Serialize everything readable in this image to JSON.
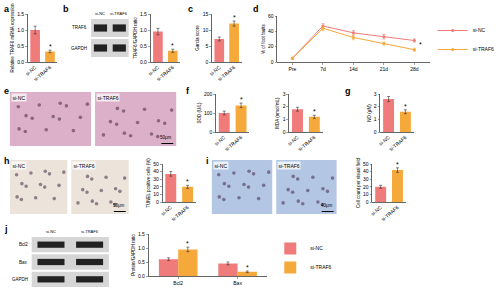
{
  "chart_data": [
    {
      "label": "a",
      "type": "bar",
      "categories": [
        "si-NC",
        "si-TRAF6"
      ],
      "values": [
        1.0,
        0.33
      ],
      "errors": [
        0.12,
        0.04
      ],
      "colors": [
        "#f07b7b",
        "#f5a93b"
      ],
      "ylabel": "Relative TRAF6 mRNA expression",
      "ylim": [
        0,
        1.5
      ],
      "yticks": [
        {
          "value": 0,
          "label": "0.0"
        },
        {
          "value": 0.5,
          "label": "0.5"
        },
        {
          "value": 1,
          "label": "1.0"
        },
        {
          "value": 1.5,
          "label": "1.5"
        }
      ],
      "annotations": [
        {
          "category": "si-TRAF6",
          "text": "*"
        }
      ]
    },
    {
      "type": "bar",
      "categories": [
        "si-NC",
        "si-TRAF6"
      ],
      "values": [
        0.95,
        0.35
      ],
      "errors": [
        0.1,
        0.05
      ],
      "colors": [
        "#f07b7b",
        "#f5a93b"
      ],
      "ylabel": "TRAF6/GAPDH ratio",
      "ylim": [
        0,
        1.5
      ],
      "yticks": [
        {
          "value": 0,
          "label": "0.0"
        },
        {
          "value": 0.5,
          "label": "0.5"
        },
        {
          "value": 1,
          "label": "1.0"
        },
        {
          "value": 1.5,
          "label": "1.5"
        }
      ],
      "annotations": [
        {
          "category": "si-TRAF6",
          "text": "*"
        }
      ]
    },
    {
      "label": "c",
      "type": "bar",
      "categories": [
        "si-NC",
        "si-TRAF6"
      ],
      "values": [
        7.2,
        12.0
      ],
      "errors": [
        0.6,
        0.8
      ],
      "colors": [
        "#f07b7b",
        "#f5a93b"
      ],
      "ylabel": "Garcia score",
      "ylim": [
        0,
        15
      ],
      "yticks": [
        0,
        5,
        10,
        15
      ],
      "annotations": [
        {
          "category": "si-TRAF6",
          "text": "*"
        }
      ]
    },
    {
      "label": "d",
      "type": "line",
      "categories": [
        "Pre",
        "7d",
        "14d",
        "21d",
        "28d"
      ],
      "series": [
        {
          "name": "si-NC",
          "color": "#f07b7b",
          "values": [
            5,
            47,
            38,
            33,
            28
          ],
          "errors": [
            1,
            3,
            3,
            3,
            2
          ]
        },
        {
          "name": "si-TRAF6",
          "color": "#f5a93b",
          "values": [
            5,
            44,
            32,
            24,
            16
          ],
          "errors": [
            1,
            3,
            3,
            2,
            2
          ]
        }
      ],
      "marker": "circle",
      "ylabel": "% of foot faults",
      "ylim": [
        0,
        60
      ],
      "yticks": [
        0,
        20,
        40,
        60
      ],
      "legend": "right",
      "annotations": [
        {
          "category": "28d",
          "series": "si-TRAF6",
          "text": "*"
        }
      ]
    },
    {
      "label": "f",
      "type": "bar",
      "categories": [
        "si-NC",
        "si-TRAF6"
      ],
      "values": [
        100,
        140
      ],
      "errors": [
        10,
        12
      ],
      "colors": [
        "#f07b7b",
        "#f5a93b"
      ],
      "ylabel": "SOD (U/L)",
      "ylim": [
        0,
        200
      ],
      "yticks": [
        0,
        100,
        200
      ],
      "annotations": [
        {
          "category": "si-TRAF6",
          "text": "*"
        }
      ]
    },
    {
      "type": "bar",
      "categories": [
        "si-NC",
        "si-TRAF6"
      ],
      "values": [
        1.8,
        1.2
      ],
      "errors": [
        0.15,
        0.12
      ],
      "colors": [
        "#f07b7b",
        "#f5a93b"
      ],
      "ylabel": "MDA (nmol/mL)",
      "ylim": [
        0,
        3
      ],
      "yticks": [
        0,
        1,
        2,
        3
      ],
      "annotations": [
        {
          "category": "si-TRAF6",
          "text": "*"
        }
      ]
    },
    {
      "label": "g",
      "type": "bar",
      "categories": [
        "si-NC",
        "si-TRAF6"
      ],
      "values": [
        2.6,
        1.6
      ],
      "errors": [
        0.2,
        0.15
      ],
      "colors": [
        "#f07b7b",
        "#f5a93b"
      ],
      "ylabel": "NO (μM)",
      "ylim": [
        0,
        3
      ],
      "yticks": [
        0,
        1,
        2,
        3
      ],
      "annotations": [
        {
          "category": "si-TRAF6",
          "text": "*"
        }
      ]
    },
    {
      "type": "bar",
      "categories": [
        "si-NC",
        "si-TRAF6"
      ],
      "values": [
        37,
        20
      ],
      "errors": [
        3,
        2
      ],
      "colors": [
        "#f07b7b",
        "#f5a93b"
      ],
      "ylabel": "TUNEL positive cells (%)",
      "ylim": [
        0,
        50
      ],
      "yticks": [
        0,
        10,
        20,
        30,
        40,
        50
      ],
      "annotations": [
        {
          "category": "si-TRAF6",
          "text": "*"
        }
      ]
    },
    {
      "type": "bar",
      "categories": [
        "si-NC",
        "si-TRAF6"
      ],
      "values": [
        20,
        42
      ],
      "errors": [
        2,
        3
      ],
      "colors": [
        "#f07b7b",
        "#f5a93b"
      ],
      "ylabel": "Cell count per visual field",
      "ylim": [
        0,
        50
      ],
      "yticks": [
        0,
        10,
        20,
        30,
        40,
        50
      ],
      "annotations": [
        {
          "category": "si-TRAF6",
          "text": "*"
        }
      ]
    },
    {
      "type": "bar",
      "categories": [
        "Bcl2",
        "Bax"
      ],
      "series": [
        {
          "name": "si-NC",
          "color": "#f07b7b",
          "values": [
            0.6,
            0.45
          ],
          "errors": [
            0.05,
            0.05
          ]
        },
        {
          "name": "si-TRAF6",
          "color": "#f5a93b",
          "values": [
            0.95,
            0.15
          ],
          "errors": [
            0.08,
            0.03
          ]
        }
      ],
      "ylabel": "Protein/GAPDH ratio",
      "ylim": [
        0,
        1.5
      ],
      "yticks": [
        {
          "value": 0,
          "label": "0.0"
        },
        {
          "value": 0.5,
          "label": "0.5"
        },
        {
          "value": 1,
          "label": "1.0"
        },
        {
          "value": 1.5,
          "label": "1.5"
        }
      ],
      "legend": "right",
      "annotations": [
        {
          "category": "Bcl2",
          "series": "si-TRAF6",
          "text": "*"
        },
        {
          "category": "Bax",
          "series": "si-TRAF6",
          "text": "*"
        }
      ]
    }
  ],
  "figures": [
    {
      "label": "b",
      "kind": "blot",
      "columns": [
        "si-NC",
        "si-TRAF6"
      ],
      "rows": [
        "TRAF6",
        "GAPDH"
      ]
    },
    {
      "label": "e",
      "kind": "micrograph",
      "panels": [
        "si-NC",
        "si-TRAF6"
      ],
      "scale_bar": "50μm",
      "color": "#dcb0c8"
    },
    {
      "label": "h",
      "kind": "micrograph",
      "panels": [
        "si-NC",
        "si-TRAF6"
      ],
      "scale_bar": "50μm",
      "color": "#ece4da"
    },
    {
      "label": "i",
      "kind": "micrograph",
      "panels": [
        "si-NC",
        "si-TRAF6"
      ],
      "scale_bar": "40μm",
      "color": "#b3c6e4"
    },
    {
      "label": "j",
      "kind": "blot",
      "columns": [
        "si-NC",
        "si-TRAF6"
      ],
      "rows": [
        "Bcl2",
        "Bax",
        "GAPDH"
      ]
    }
  ]
}
